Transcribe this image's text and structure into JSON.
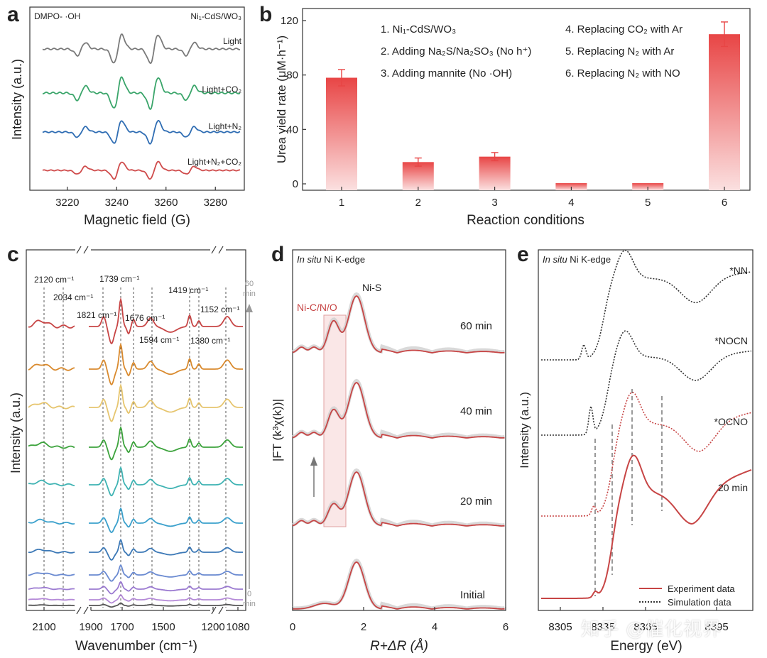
{
  "panels": {
    "a": {
      "letter": "a",
      "left_label": "DMPO- ·OH",
      "right_label": "Ni₁-CdS/WO₃",
      "ylabel": "Intensity (a.u.)",
      "xlabel": "Magnetic field (G)",
      "xticks": [
        "3220",
        "3240",
        "3260",
        "3280"
      ],
      "traces": [
        {
          "label": "Light",
          "color": "#7a7a7a"
        },
        {
          "label": "Light+CO₂",
          "color": "#3aa56a"
        },
        {
          "label": "Light+N₂",
          "color": "#2f6db3"
        },
        {
          "label": "Light+N₂+CO₂",
          "color": "#cf4b4b"
        }
      ]
    },
    "b": {
      "letter": "b",
      "legend": [
        "1. Ni₁-CdS/WO₃",
        "2. Adding Na₂S/Na₂SO₃ (No h⁺)",
        "3. Adding mannite (No ·OH)",
        "4. Replacing CO₂ with Ar",
        "5. Replacing N₂ with Ar",
        "6. Replacing N₂ with NO"
      ]
    },
    "c": {
      "letter": "c",
      "ylabel": "Intensity (a.u.)",
      "xlabel": "Wavenumber (cm⁻¹)",
      "peaks": [
        "2120 cm⁻¹",
        "2034 cm⁻¹",
        "1821 cm⁻¹",
        "1739 cm⁻¹",
        "1676 cm⁻¹",
        "1594 cm⁻¹",
        "1419 cm⁻¹",
        "1380 cm⁻¹",
        "1152 cm⁻¹"
      ],
      "xticks": [
        "2100",
        "1900",
        "1700",
        "1500",
        "1200",
        "1080"
      ],
      "time_top": "60",
      "time_bottom": "0",
      "time_unit": "min",
      "colors": [
        "#c74545",
        "#d98a2e",
        "#e6c56e",
        "#3ca33c",
        "#3fb3b3",
        "#3aa0cc",
        "#3b78b6",
        "#6a8ad1",
        "#9b7ad1",
        "#b58ad8",
        "#555555"
      ]
    },
    "d": {
      "letter": "d",
      "title_italic": "In situ",
      "title_rest": " Ni K-edge",
      "ylabel": "|FT (k³χ(k))|",
      "xlabel": "R+ΔR (Å)",
      "peak_labels": [
        "Ni-C/N/O",
        "Ni-S"
      ],
      "curves": [
        "60 min",
        "40 min",
        "20 min",
        "Initial"
      ],
      "xticks": [
        "0",
        "2",
        "4",
        "6"
      ]
    },
    "e": {
      "letter": "e",
      "title_italic": "In situ",
      "title_rest": " Ni K-edge",
      "ylabel": "Intensity (a.u.)",
      "xlabel": "Energy (eV)",
      "curves": [
        "*NN",
        "*NOCN",
        "*OCNO",
        "20 min"
      ],
      "xticks": [
        "8305",
        "8335",
        "8365",
        "8395"
      ],
      "legend": [
        "Experiment data",
        "Simulation data"
      ]
    }
  },
  "watermark": "知乎 @催化视界",
  "chart_data": {
    "type": "bar",
    "categories": [
      "1",
      "2",
      "3",
      "4",
      "5",
      "6"
    ],
    "values": [
      78,
      16,
      20,
      0.5,
      0.5,
      110
    ],
    "errors": [
      6,
      3,
      3,
      0,
      0,
      9
    ],
    "yticks": [
      "0",
      "40",
      "80",
      "120"
    ],
    "title": "",
    "xlabel": "Reaction conditions",
    "ylabel": "Urea yield rate (μM·h⁻¹)",
    "ylim": [
      0,
      125
    ],
    "bar_color_top": "#e84545",
    "bar_color_bottom": "#fbe0e0"
  }
}
